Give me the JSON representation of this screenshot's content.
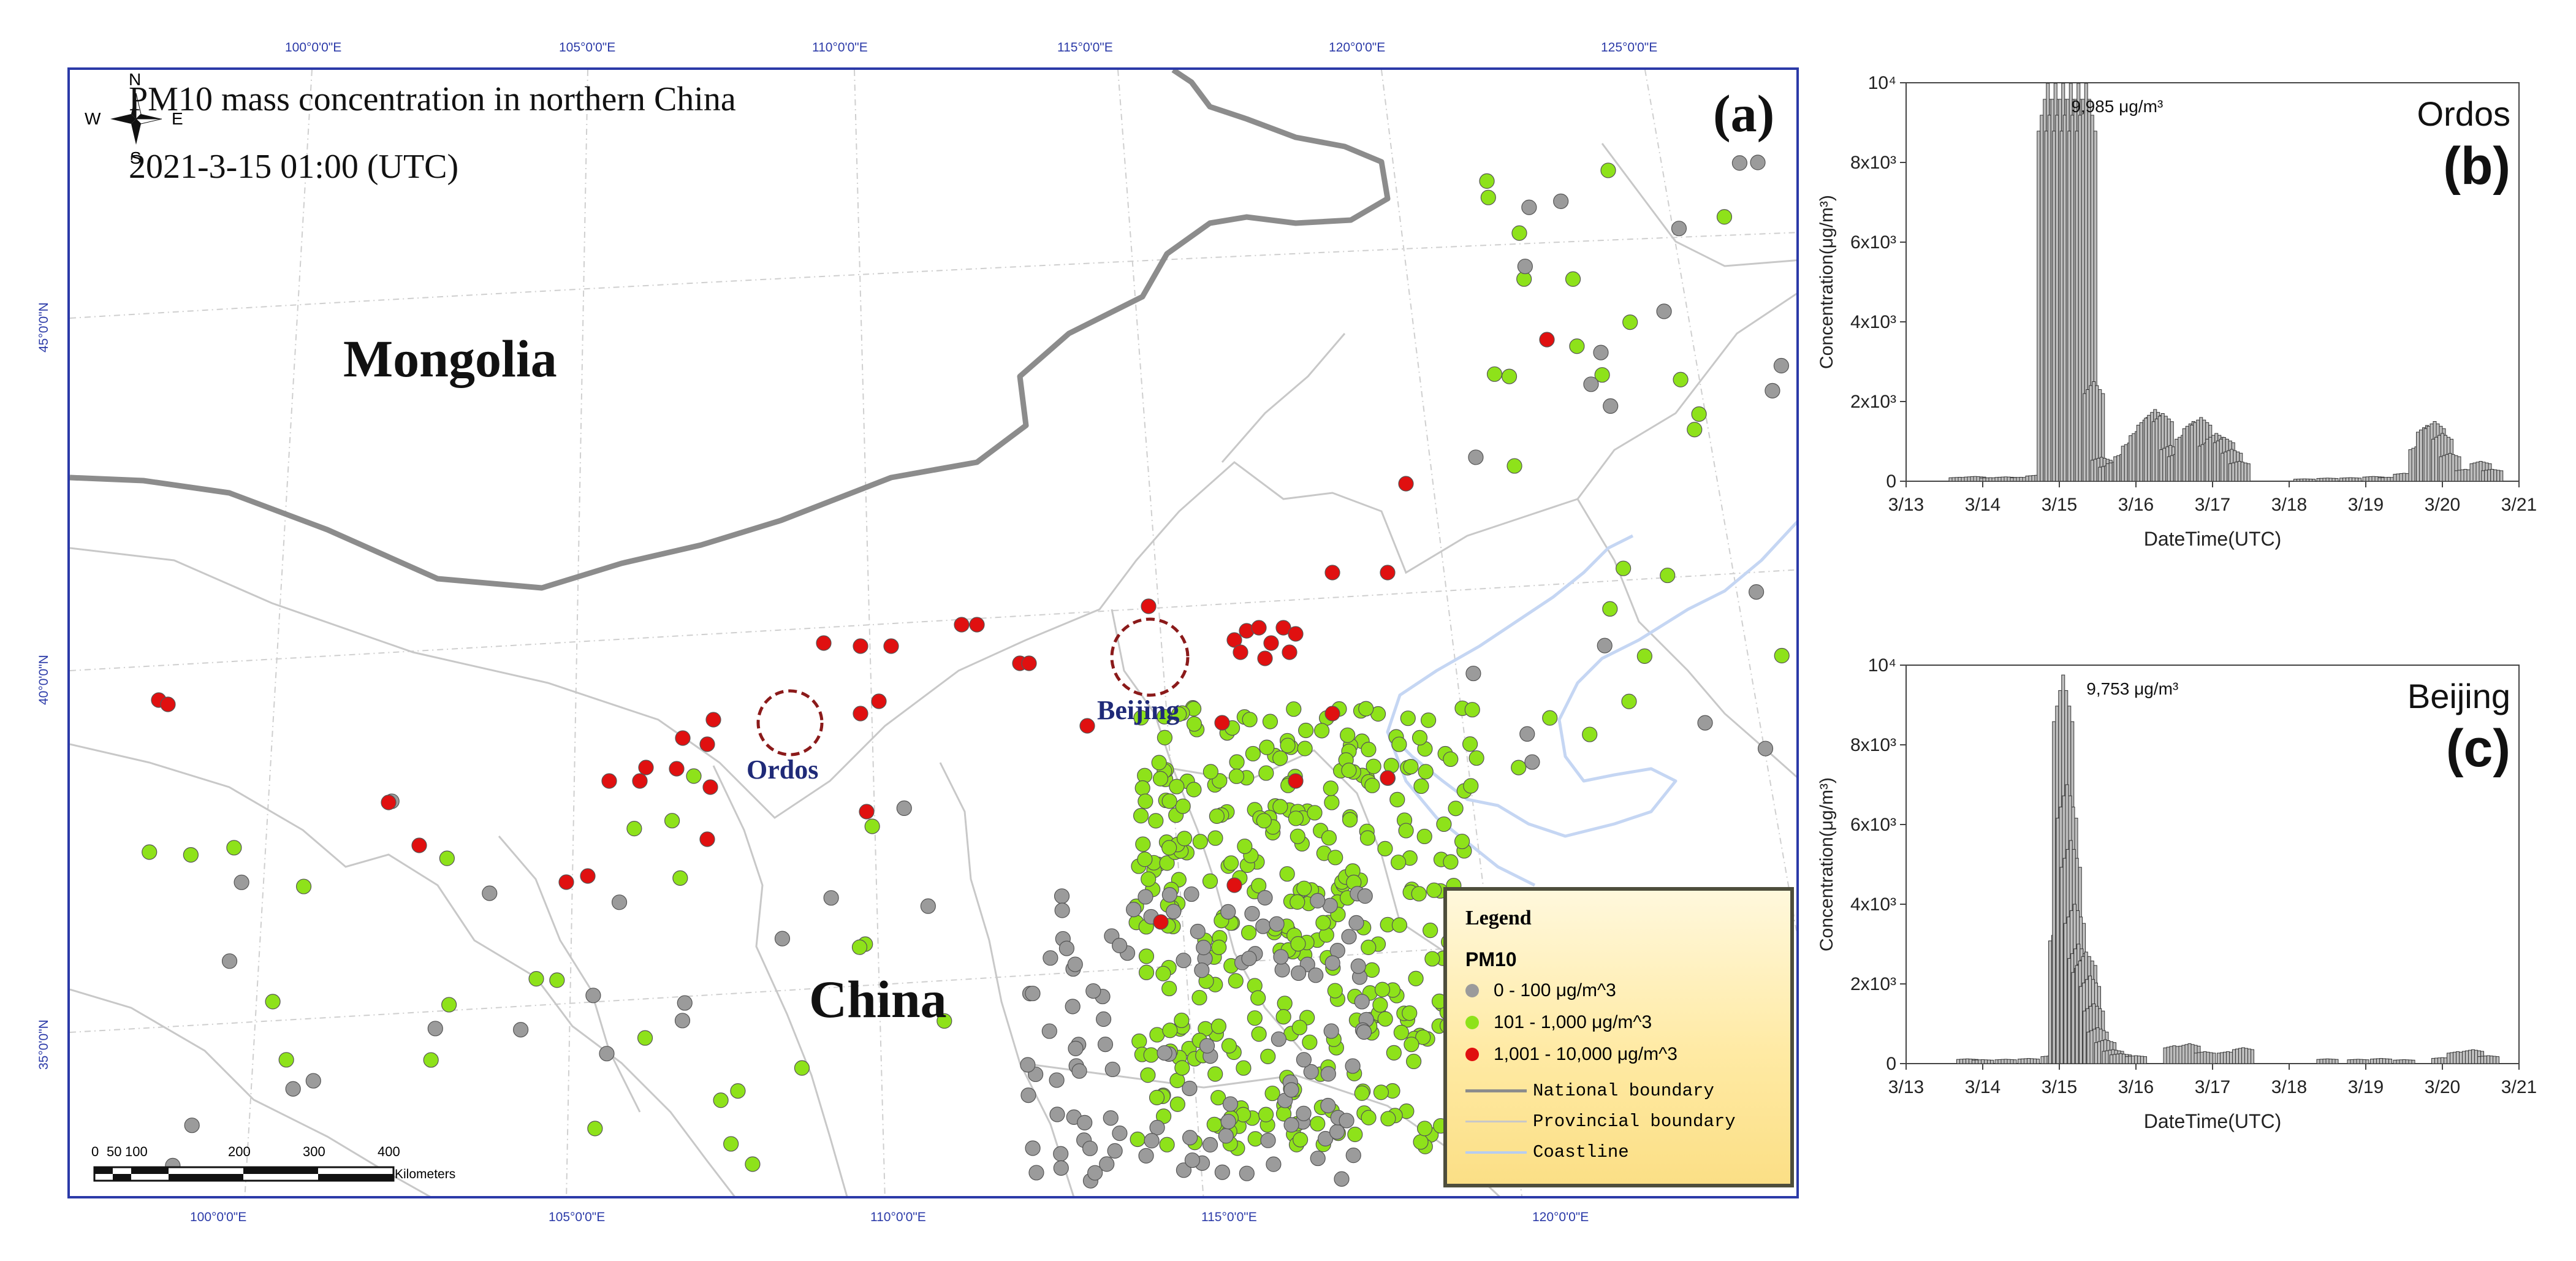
{
  "map": {
    "title": "PM10 mass concentration in northern China",
    "time": "2021-3-15 01:00 (UTC)",
    "panel_label": "(a)",
    "countries": {
      "mongolia": "Mongolia",
      "china": "China"
    },
    "cities": {
      "ordos": "Ordos",
      "beijing": "Beijing"
    },
    "compass": {
      "n": "N",
      "s": "S",
      "e": "E",
      "w": "W"
    },
    "lon_top": [
      "100°0'0\"E",
      "105°0'0\"E",
      "110°0'0\"E",
      "115°0'0\"E",
      "120°0'0\"E",
      "125°0'0\"E"
    ],
    "lon_bottom": [
      "100°0'0\"E",
      "105°0'0\"E",
      "110°0'0\"E",
      "115°0'0\"E",
      "120°0'0\"E"
    ],
    "lat_left": [
      "45°0'0\"N",
      "40°0'0\"N",
      "35°0'0\"N"
    ],
    "scale_bar": {
      "ticks": [
        "0",
        "50",
        "100",
        "200",
        "300",
        "400"
      ],
      "unit": "Kilometers"
    },
    "legend": {
      "title": "Legend",
      "subtitle": "PM10",
      "classes": [
        {
          "label": "0 - 100 μg/m^3",
          "color": "#9b9b9b"
        },
        {
          "label": "101 - 1,000 μg/m^3",
          "color": "#8ee21a"
        },
        {
          "label": "1,001 - 10,000 μg/m^3",
          "color": "#e01010"
        }
      ],
      "lines": [
        {
          "label": "National boundary",
          "color": "#8c8c8c"
        },
        {
          "label": "Provincial boundary",
          "color": "#c8c8c8"
        },
        {
          "label": "Coastline",
          "color": "#b7cdf2"
        }
      ]
    },
    "colors": {
      "frame": "#2b3aa8",
      "city_circle": "#8b1a1a",
      "city_label": "#1f2a78",
      "water": "#c5d6f3"
    }
  },
  "chart_data": [
    {
      "type": "bar",
      "title": "Ordos",
      "panel_label": "(b)",
      "xlabel": "DateTime(UTC)",
      "ylabel": "Concentration(μg/m³)",
      "x_ticks": [
        "3/13",
        "3/14",
        "3/15",
        "3/16",
        "3/17",
        "3/18",
        "3/19",
        "3/20",
        "3/21"
      ],
      "y_ticks": [
        "0",
        "2x10³",
        "4x10³",
        "6x10³",
        "8x10³",
        "10⁴"
      ],
      "ylim": [
        0,
        10000
      ],
      "xlim_days": [
        13,
        21
      ],
      "annotation": "9,985 μg/m³",
      "x_days": [
        13.7,
        13.9,
        14.1,
        14.3,
        14.5,
        14.7,
        14.85,
        14.95,
        15.05,
        15.15,
        15.25,
        15.35,
        15.45,
        15.55,
        15.65,
        15.75,
        15.85,
        15.95,
        16.05,
        16.15,
        16.25,
        16.35,
        16.45,
        16.55,
        16.65,
        16.75,
        16.85,
        16.95,
        17.05,
        17.15,
        17.25,
        17.35,
        18.2,
        18.5,
        18.8,
        19.1,
        19.3,
        19.5,
        19.7,
        19.8,
        19.9,
        20.0,
        20.1,
        20.3,
        20.5,
        20.65
      ],
      "values": [
        100,
        120,
        90,
        110,
        100,
        150,
        9985,
        9985,
        9985,
        9985,
        9985,
        9985,
        2500,
        600,
        400,
        500,
        700,
        1000,
        1300,
        1600,
        1800,
        1700,
        900,
        700,
        1200,
        1500,
        1600,
        1000,
        1200,
        1100,
        800,
        500,
        60,
        80,
        90,
        120,
        100,
        200,
        900,
        1400,
        1500,
        1200,
        700,
        300,
        500,
        300
      ]
    },
    {
      "type": "bar",
      "title": "Beijing",
      "panel_label": "(c)",
      "xlabel": "DateTime(UTC)",
      "ylabel": "Concentration(μg/m³)",
      "x_ticks": [
        "3/13",
        "3/14",
        "3/15",
        "3/16",
        "3/17",
        "3/18",
        "3/19",
        "3/20",
        "3/21"
      ],
      "y_ticks": [
        "0",
        "2x10³",
        "4x10³",
        "6x10³",
        "8x10³",
        "10⁴"
      ],
      "ylim": [
        0,
        10000
      ],
      "xlim_days": [
        13,
        21
      ],
      "annotation": "9,753 μg/m³",
      "x_days": [
        13.8,
        14.0,
        14.3,
        14.6,
        14.9,
        15.0,
        15.05,
        15.1,
        15.15,
        15.2,
        15.25,
        15.3,
        15.35,
        15.4,
        15.45,
        15.5,
        15.6,
        15.7,
        15.8,
        16.0,
        16.5,
        16.7,
        16.9,
        17.2,
        17.4,
        18.5,
        18.9,
        19.2,
        19.5,
        20.0,
        20.2,
        20.4,
        20.6
      ],
      "values": [
        120,
        100,
        110,
        130,
        200,
        3500,
        9753,
        7000,
        5600,
        4000,
        3000,
        2600,
        2800,
        2200,
        1500,
        900,
        600,
        350,
        250,
        200,
        450,
        500,
        300,
        300,
        400,
        120,
        110,
        130,
        100,
        150,
        300,
        350,
        200
      ]
    }
  ]
}
